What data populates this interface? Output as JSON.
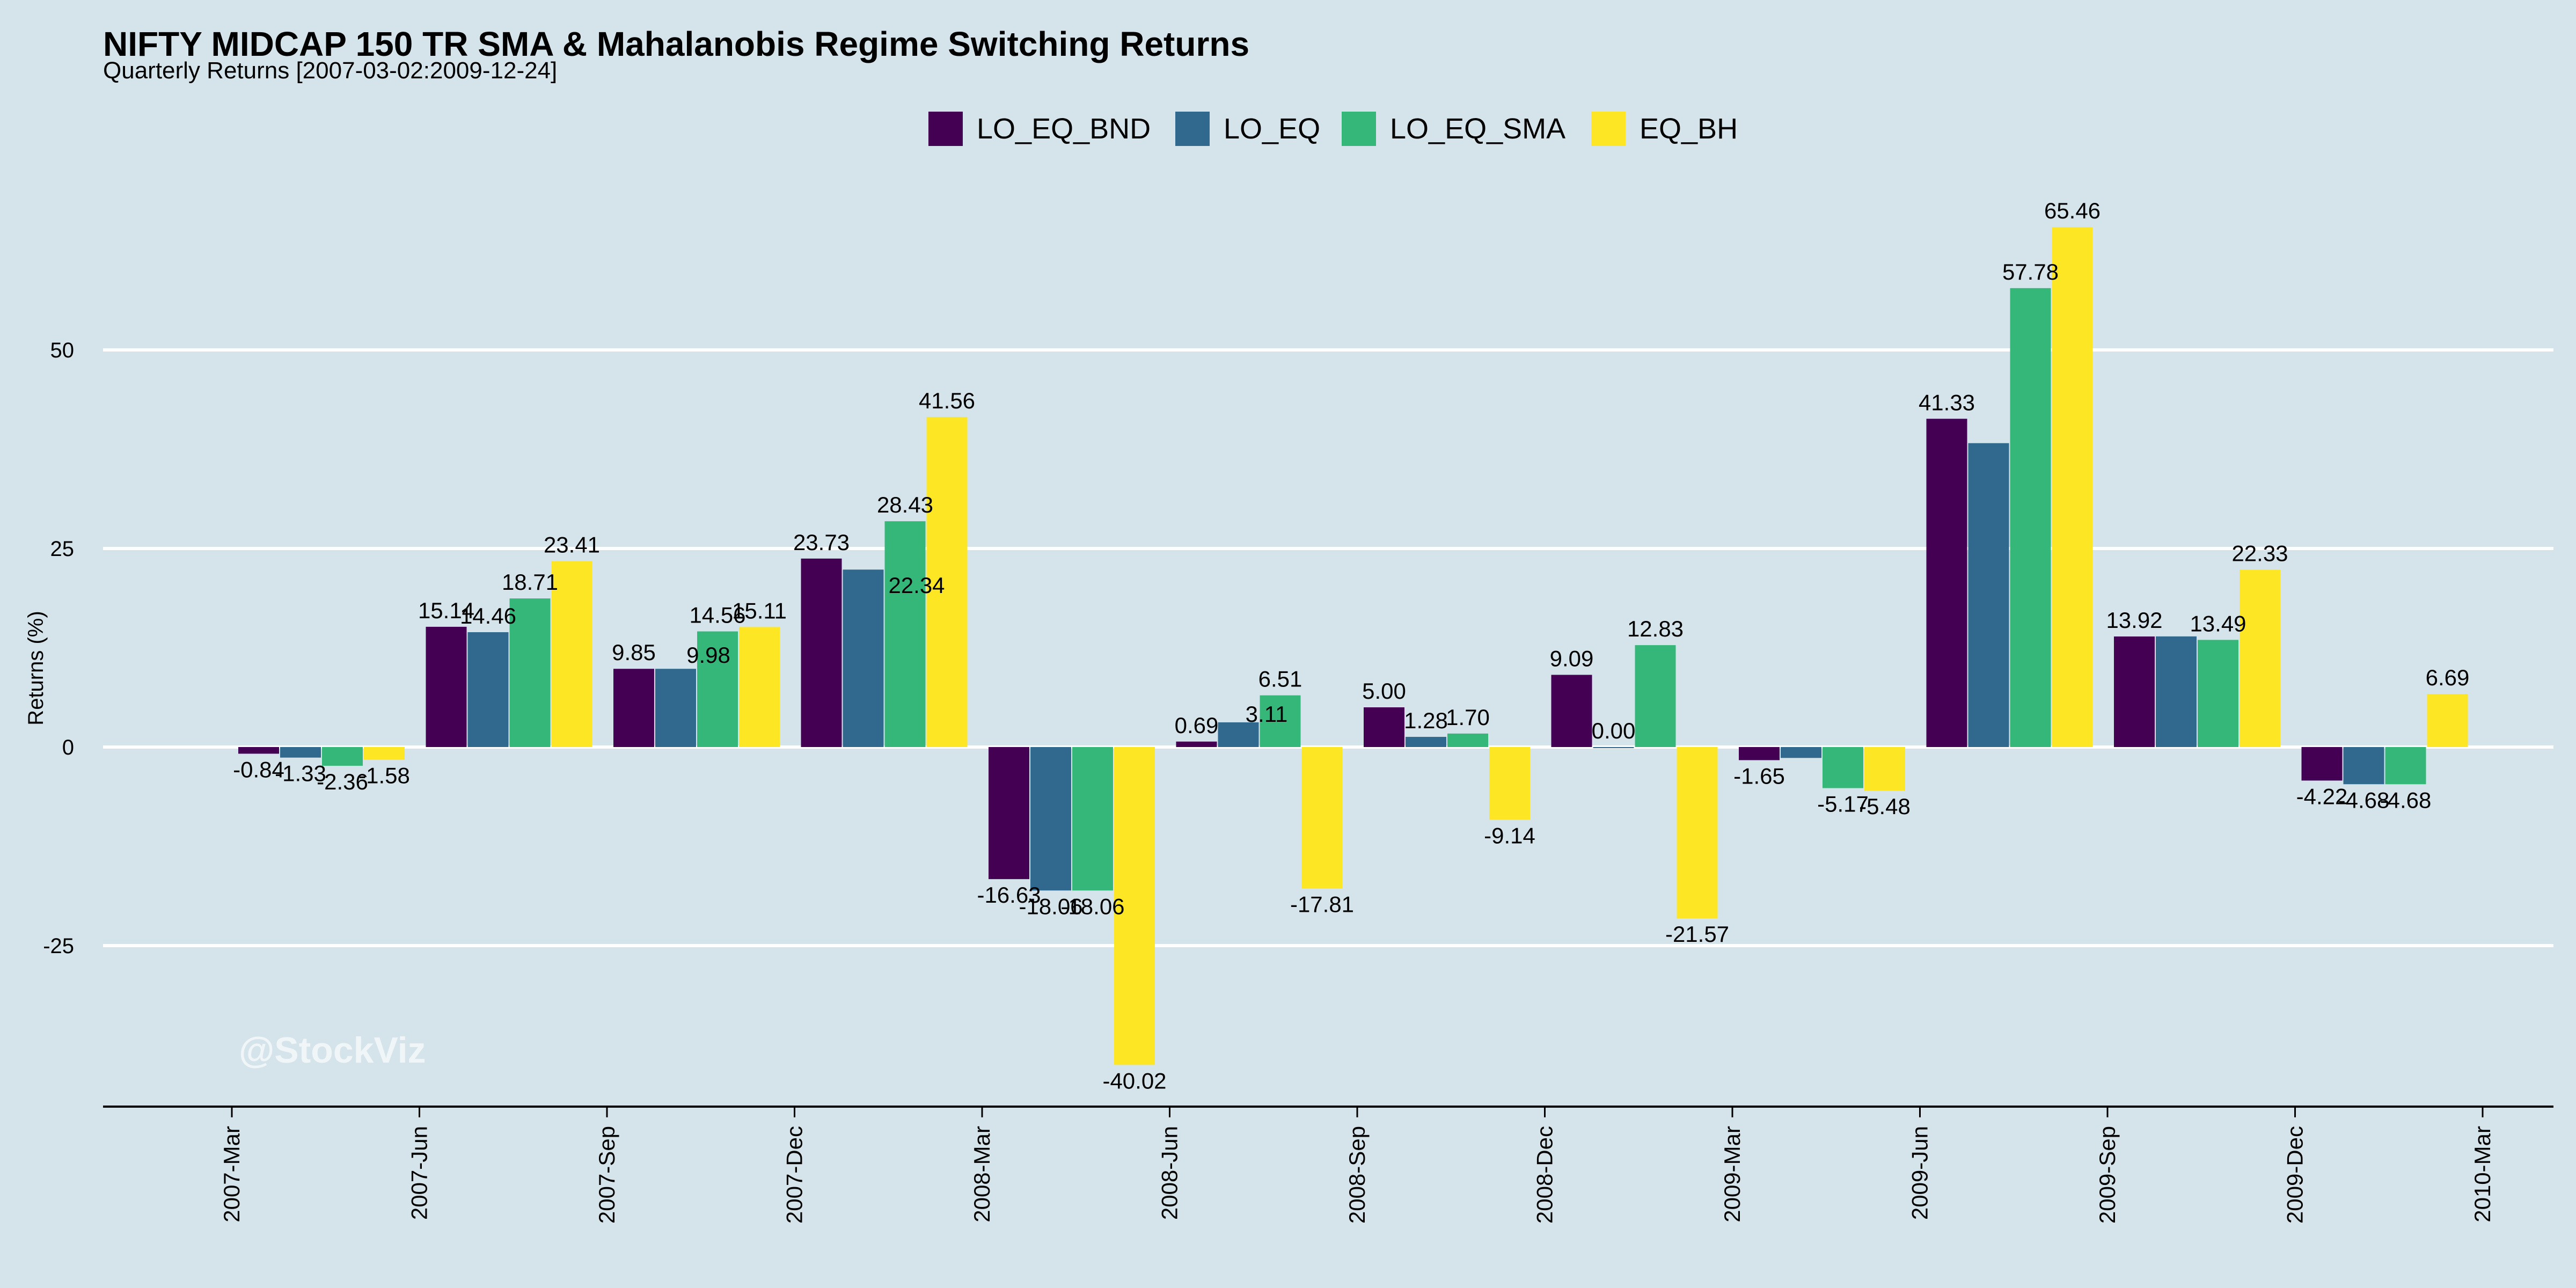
{
  "chart_data": {
    "type": "bar",
    "title": "NIFTY MIDCAP 150 TR SMA & Mahalanobis Regime Switching Returns",
    "subtitle": "Quarterly Returns [2007-03-02:2009-12-24]",
    "ylabel": "Returns (%)",
    "xlabel": "",
    "ylim": [
      -45,
      70
    ],
    "yticks": [
      -25,
      0,
      25,
      50
    ],
    "xticks": [
      "2007-Mar",
      "2007-Jun",
      "2007-Sep",
      "2007-Dec",
      "2008-Mar",
      "2008-Jun",
      "2008-Sep",
      "2008-Dec",
      "2009-Mar",
      "2009-Jun",
      "2009-Sep",
      "2009-Dec",
      "2010-Mar"
    ],
    "categories": [
      "2007-Mar",
      "2007-Jun",
      "2007-Sep",
      "2007-Dec",
      "2008-Mar",
      "2008-Jun",
      "2008-Sep",
      "2008-Dec",
      "2009-Mar",
      "2009-Jun",
      "2009-Sep",
      "2009-Dec"
    ],
    "grid": true,
    "legend_position": "top",
    "watermark": "@StockViz",
    "series": [
      {
        "name": "LO_EQ_BND",
        "color": "#440154",
        "values": [
          -0.84,
          15.14,
          9.85,
          23.73,
          -16.63,
          0.69,
          5.0,
          9.09,
          -1.65,
          41.33,
          13.92,
          -4.22
        ],
        "labels": [
          "-0.84",
          "15.14",
          "9.85",
          "23.73",
          "-16.63",
          "0.69",
          "5.00",
          "9.09",
          "-1.65",
          "41.33",
          "13.92",
          "-4.22"
        ]
      },
      {
        "name": "LO_EQ",
        "color": "#31688e",
        "values": [
          -1.33,
          14.46,
          9.85,
          22.34,
          -18.06,
          3.11,
          1.28,
          0.0,
          -1.37,
          38.26,
          13.93,
          -4.68
        ],
        "labels": [
          "-1.33",
          "14.46",
          "",
          "",
          "-18.06",
          "",
          "1.28",
          "0.00",
          "",
          "",
          "",
          "-4.68"
        ]
      },
      {
        "name": "LO_EQ_SMA",
        "color": "#35b779",
        "values": [
          -2.36,
          18.71,
          14.56,
          28.43,
          -18.06,
          6.51,
          1.7,
          12.83,
          -5.17,
          57.78,
          13.49,
          -4.68
        ],
        "labels": [
          "-2.36",
          "18.71",
          "14.56",
          "28.43",
          "-18.06",
          "6.51",
          "1.70",
          "12.83",
          "-5.17",
          "57.78",
          "13.49",
          "-4.68"
        ]
      },
      {
        "name": "EQ_BH",
        "color": "#fde725",
        "values": [
          -1.58,
          23.41,
          15.11,
          41.56,
          -40.02,
          -17.81,
          -9.14,
          -21.57,
          -5.48,
          65.46,
          22.33,
          6.69
        ],
        "labels": [
          "-1.58",
          "23.41",
          "15.11",
          "41.56",
          "-40.02",
          "-17.81",
          "-9.14",
          "-21.57",
          "-5.48",
          "65.46",
          "22.33",
          "6.69"
        ]
      }
    ],
    "extra_labels": [
      "3.11",
      "22.34",
      "9.98"
    ]
  }
}
